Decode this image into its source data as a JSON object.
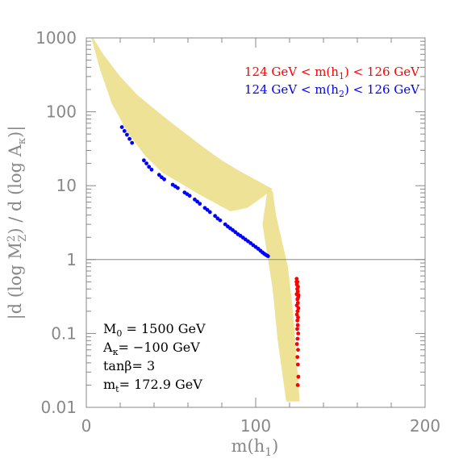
{
  "colors": {
    "background": "#ffffff",
    "axis": "#888888",
    "band": "#ecdf8c",
    "h1_points": "#ff0000",
    "h2_points": "#0000ff",
    "reference_line": "#888888"
  },
  "legend": {
    "h1": {
      "prefix": "124 GeV < m(h",
      "sub": "1",
      "suffix": ") < 126 GeV"
    },
    "h2": {
      "prefix": "124 GeV < m(h",
      "sub": "2",
      "suffix": ") < 126 GeV"
    }
  },
  "parameters": {
    "m0": {
      "sym": "M",
      "sub": "0",
      "rest": " = 1500 GeV"
    },
    "akappa": {
      "sym": "A",
      "sub": "κ",
      "rest": "= −100 GeV"
    },
    "tanbeta": {
      "text": "tanβ= 3"
    },
    "mt": {
      "sym": "m",
      "sub": "t",
      "rest": "= 172.9 GeV"
    }
  },
  "chart_data": {
    "type": "scatter",
    "xlabel": {
      "prefix": "m(h",
      "sub": "1",
      "suffix": ")"
    },
    "ylabel": {
      "p1": "|d  (log M",
      "sup": "2",
      "zsub": "Z",
      "p2": ")  /  d  (log A",
      "ksub": "κ",
      "p3": ")|"
    },
    "xlim": [
      0,
      200
    ],
    "ylim": [
      0.01,
      1000
    ],
    "yscale": "log",
    "x_ticks": [
      0,
      100,
      200
    ],
    "x_tick_labels": [
      "0",
      "100",
      "200"
    ],
    "y_ticks": [
      0.01,
      0.1,
      1,
      10,
      100,
      1000
    ],
    "y_tick_labels": [
      "0.01",
      "0.1",
      "1",
      "10",
      "100",
      "1000"
    ],
    "reference_line_y": 1,
    "legend_position": "top-right",
    "series": [
      {
        "name": "124 GeV < m(h1) < 126 GeV",
        "color": "#ff0000",
        "points": [
          [
            124.2,
            0.55
          ],
          [
            124.6,
            0.5
          ],
          [
            124.3,
            0.46
          ],
          [
            125.0,
            0.43
          ],
          [
            124.5,
            0.4
          ],
          [
            124.8,
            0.37
          ],
          [
            124.2,
            0.34
          ],
          [
            125.1,
            0.31
          ],
          [
            124.6,
            0.29
          ],
          [
            124.9,
            0.26
          ],
          [
            124.3,
            0.24
          ],
          [
            125.2,
            0.22
          ],
          [
            124.7,
            0.2
          ],
          [
            124.4,
            0.18
          ],
          [
            125.0,
            0.165
          ],
          [
            124.6,
            0.15
          ],
          [
            124.8,
            0.13
          ],
          [
            124.5,
            0.115
          ],
          [
            125.1,
            0.1
          ],
          [
            124.7,
            0.085
          ],
          [
            124.4,
            0.072
          ],
          [
            125.0,
            0.06
          ],
          [
            124.6,
            0.048
          ],
          [
            124.9,
            0.038
          ],
          [
            125.2,
            0.026
          ],
          [
            124.8,
            0.02
          ],
          [
            124.1,
            0.5
          ],
          [
            125.3,
            0.33
          ]
        ]
      },
      {
        "name": "124 GeV < m(h2) < 126 GeV",
        "color": "#0000ff",
        "points": [
          [
            21,
            62
          ],
          [
            22.5,
            55
          ],
          [
            24,
            49
          ],
          [
            25.5,
            43
          ],
          [
            27,
            38
          ],
          [
            34,
            22
          ],
          [
            35.5,
            20
          ],
          [
            37,
            18
          ],
          [
            38.5,
            16.5
          ],
          [
            43,
            14
          ],
          [
            44.5,
            13
          ],
          [
            46,
            12.2
          ],
          [
            51,
            10.3
          ],
          [
            52.5,
            9.8
          ],
          [
            54,
            9.3
          ],
          [
            58,
            8.1
          ],
          [
            59.5,
            7.7
          ],
          [
            61,
            7.3
          ],
          [
            64,
            6.5
          ],
          [
            65.5,
            6.1
          ],
          [
            67,
            5.7
          ],
          [
            70,
            5.0
          ],
          [
            71.5,
            4.7
          ],
          [
            73,
            4.4
          ],
          [
            76,
            3.9
          ],
          [
            77.5,
            3.6
          ],
          [
            79,
            3.4
          ],
          [
            82,
            3.0
          ],
          [
            83.5,
            2.8
          ],
          [
            85,
            2.65
          ],
          [
            86.5,
            2.5
          ],
          [
            88,
            2.35
          ],
          [
            89.5,
            2.2
          ],
          [
            91,
            2.1
          ],
          [
            92.5,
            1.98
          ],
          [
            94,
            1.87
          ],
          [
            95.5,
            1.77
          ],
          [
            97,
            1.67
          ],
          [
            98.5,
            1.57
          ],
          [
            100,
            1.48
          ],
          [
            101.5,
            1.4
          ],
          [
            102.8,
            1.32
          ],
          [
            104,
            1.25
          ],
          [
            105,
            1.2
          ],
          [
            106,
            1.16
          ],
          [
            106.8,
            1.13
          ],
          [
            107.3,
            1.11
          ]
        ]
      }
    ]
  }
}
